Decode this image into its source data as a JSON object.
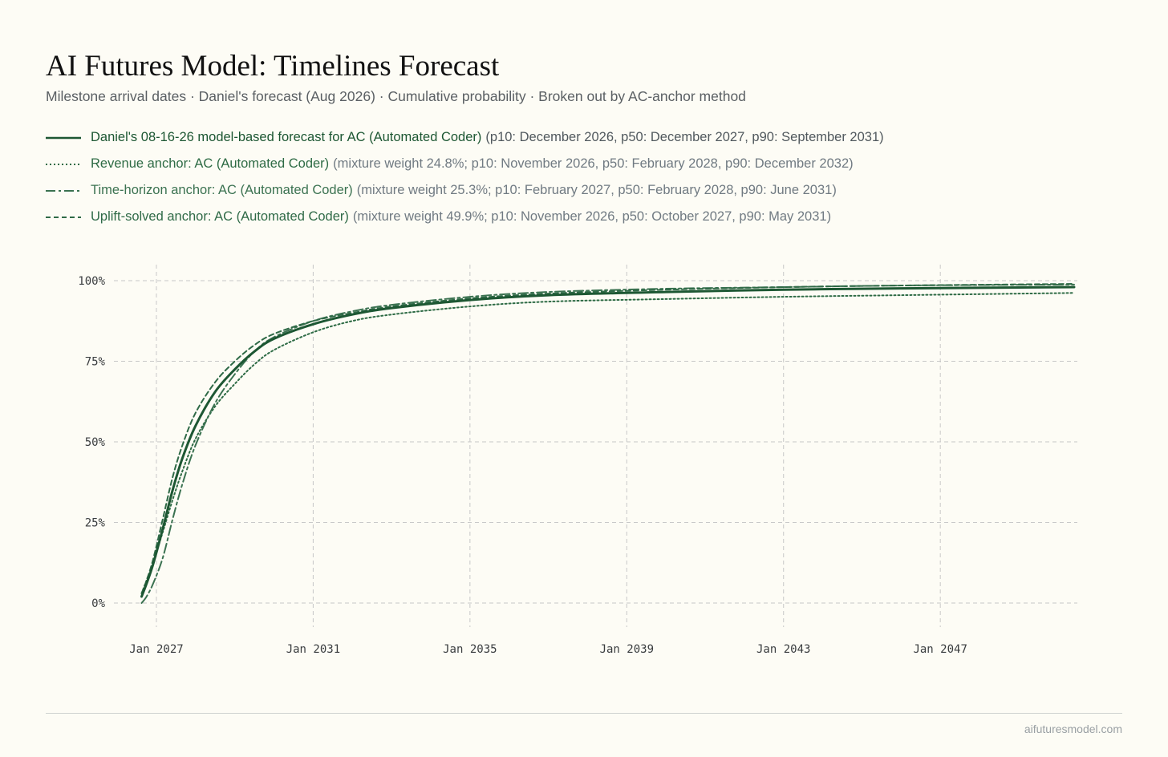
{
  "header": {
    "title": "AI Futures Model: Timelines Forecast",
    "subtitle": "Milestone arrival dates · Daniel's forecast (Aug 2026) · Cumulative probability · Broken out by AC-anchor method"
  },
  "footer": {
    "source": "aifuturesmodel.com"
  },
  "colors": {
    "background": "#fdfcf5",
    "series_main": "#1d5733",
    "series_revenue": "#2e6b45",
    "series_time_horizon": "#3b7251",
    "series_uplift": "#2f6a47",
    "grid": "#c8c8c8",
    "legend_detail": "#707a82"
  },
  "chart_data": {
    "type": "line",
    "title": "AI Futures Model: Timelines Forecast",
    "xlabel": "",
    "ylabel": "",
    "x_axis": {
      "type": "date",
      "range": [
        "2025-12-01",
        "2050-07-01"
      ],
      "ticks": [
        "2027-01-01",
        "2031-01-01",
        "2035-01-01",
        "2039-01-01",
        "2043-01-01",
        "2047-01-01"
      ],
      "tick_labels": [
        "Jan 2027",
        "Jan 2031",
        "Jan 2035",
        "Jan 2039",
        "Jan 2043",
        "Jan 2047"
      ]
    },
    "y_axis": {
      "range": [
        0,
        1
      ],
      "ticks": [
        0,
        0.25,
        0.5,
        0.75,
        1
      ],
      "tick_labels": [
        "0%",
        "25%",
        "50%",
        "75%",
        "100%"
      ]
    },
    "grid": true,
    "legend_placement": "top",
    "series": [
      {
        "name": "Daniel's 08-16-26 model-based forecast for AC (Automated Coder)",
        "detail": "(p10: December 2026, p50: December 2027, p90: September 2031)",
        "style": "solid",
        "color": "#1d5733",
        "points": [
          [
            "2026-08-16",
            0.02
          ],
          [
            "2026-10-01",
            0.06
          ],
          [
            "2026-12-01",
            0.12
          ],
          [
            "2027-03-01",
            0.23
          ],
          [
            "2027-06-01",
            0.35
          ],
          [
            "2027-09-01",
            0.45
          ],
          [
            "2028-01-01",
            0.55
          ],
          [
            "2028-07-01",
            0.655
          ],
          [
            "2029-01-01",
            0.725
          ],
          [
            "2029-07-01",
            0.78
          ],
          [
            "2030-01-01",
            0.82
          ],
          [
            "2031-01-01",
            0.865
          ],
          [
            "2032-01-01",
            0.895
          ],
          [
            "2033-01-01",
            0.915
          ],
          [
            "2035-01-01",
            0.94
          ],
          [
            "2037-01-01",
            0.955
          ],
          [
            "2040-01-01",
            0.965
          ],
          [
            "2043-01-01",
            0.972
          ],
          [
            "2046-01-01",
            0.976
          ],
          [
            "2050-06-01",
            0.98
          ]
        ]
      },
      {
        "name": "Revenue anchor: AC (Automated Coder)",
        "detail": "(mixture weight 24.8%; p10: November 2026, p50: February 2028, p90: December 2032)",
        "style": "dotted",
        "color": "#2e6b45",
        "points": [
          [
            "2026-08-16",
            0.03
          ],
          [
            "2026-10-01",
            0.07
          ],
          [
            "2026-12-01",
            0.125
          ],
          [
            "2027-03-01",
            0.22
          ],
          [
            "2027-06-01",
            0.32
          ],
          [
            "2027-09-01",
            0.41
          ],
          [
            "2028-01-01",
            0.51
          ],
          [
            "2028-07-01",
            0.61
          ],
          [
            "2029-01-01",
            0.68
          ],
          [
            "2029-07-01",
            0.74
          ],
          [
            "2030-01-01",
            0.785
          ],
          [
            "2031-01-01",
            0.84
          ],
          [
            "2032-01-01",
            0.875
          ],
          [
            "2033-01-01",
            0.895
          ],
          [
            "2035-01-01",
            0.92
          ],
          [
            "2037-01-01",
            0.935
          ],
          [
            "2040-01-01",
            0.943
          ],
          [
            "2043-01-01",
            0.95
          ],
          [
            "2046-01-01",
            0.955
          ],
          [
            "2050-06-01",
            0.962
          ]
        ]
      },
      {
        "name": "Time-horizon anchor: AC (Automated Coder)",
        "detail": "(mixture weight 25.3%; p10: February 2027, p50: February 2028, p90: June 2031)",
        "style": "dashdot",
        "color": "#3b7251",
        "points": [
          [
            "2026-08-16",
            0.0
          ],
          [
            "2026-10-01",
            0.02
          ],
          [
            "2026-12-01",
            0.06
          ],
          [
            "2027-03-01",
            0.14
          ],
          [
            "2027-06-01",
            0.26
          ],
          [
            "2027-09-01",
            0.37
          ],
          [
            "2028-01-01",
            0.49
          ],
          [
            "2028-07-01",
            0.62
          ],
          [
            "2029-01-01",
            0.71
          ],
          [
            "2029-07-01",
            0.78
          ],
          [
            "2030-01-01",
            0.825
          ],
          [
            "2031-01-01",
            0.875
          ],
          [
            "2032-01-01",
            0.905
          ],
          [
            "2033-01-01",
            0.925
          ],
          [
            "2035-01-01",
            0.95
          ],
          [
            "2037-01-01",
            0.965
          ],
          [
            "2040-01-01",
            0.975
          ],
          [
            "2043-01-01",
            0.98
          ],
          [
            "2046-01-01",
            0.985
          ],
          [
            "2050-06-01",
            0.988
          ]
        ]
      },
      {
        "name": "Uplift-solved anchor: AC (Automated Coder)",
        "detail": "(mixture weight 49.9%; p10: November 2026, p50: October 2027, p90: May 2031)",
        "style": "dashed",
        "color": "#2f6a47",
        "points": [
          [
            "2026-08-16",
            0.03
          ],
          [
            "2026-10-01",
            0.07
          ],
          [
            "2026-12-01",
            0.135
          ],
          [
            "2027-03-01",
            0.26
          ],
          [
            "2027-06-01",
            0.39
          ],
          [
            "2027-09-01",
            0.49
          ],
          [
            "2028-01-01",
            0.59
          ],
          [
            "2028-07-01",
            0.685
          ],
          [
            "2029-01-01",
            0.75
          ],
          [
            "2029-07-01",
            0.8
          ],
          [
            "2030-01-01",
            0.835
          ],
          [
            "2031-01-01",
            0.875
          ],
          [
            "2032-01-01",
            0.9
          ],
          [
            "2033-01-01",
            0.92
          ],
          [
            "2035-01-01",
            0.945
          ],
          [
            "2037-01-01",
            0.96
          ],
          [
            "2040-01-01",
            0.972
          ],
          [
            "2043-01-01",
            0.98
          ],
          [
            "2046-01-01",
            0.985
          ],
          [
            "2050-06-01",
            0.99
          ]
        ]
      }
    ]
  }
}
